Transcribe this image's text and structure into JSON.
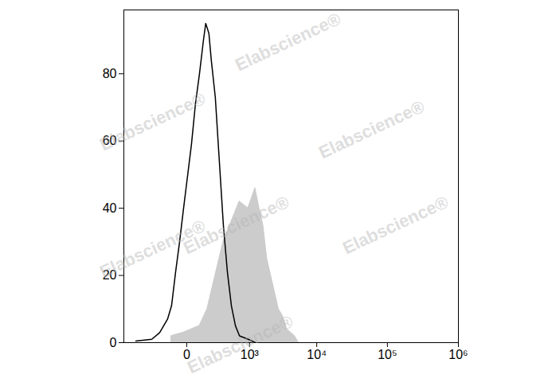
{
  "chart_data": {
    "type": "area",
    "log": "x",
    "xlim": [
      -1000,
      1000000
    ],
    "xticks": [
      0,
      {
        "value": 1000,
        "label": "10³"
      },
      {
        "value": 10000,
        "label": "10⁴"
      },
      {
        "value": 100000,
        "label": "10⁵"
      },
      {
        "value": 1000000,
        "label": "10⁶"
      }
    ],
    "ylim": [
      0,
      99
    ],
    "yticks": [
      0,
      20,
      40,
      60,
      80
    ],
    "grid": false,
    "annotations": [
      {
        "text": "Elabscience®"
      }
    ],
    "series": [
      {
        "type": "area",
        "color": "#cccccc",
        "x": [
          -95,
          -16,
          77,
          143,
          229,
          342,
          488,
          680,
          949,
          1235,
          1430,
          1640,
          1880,
          2150,
          2460,
          2800,
          3220,
          3710,
          4800,
          5500
        ],
        "values": [
          2,
          3,
          5,
          10,
          20,
          30,
          36,
          42,
          40,
          46,
          40,
          35,
          25,
          20,
          15,
          10,
          8,
          4,
          2,
          0
        ]
      },
      {
        "type": "line",
        "color": "#000000",
        "x": [
          -631,
          -315,
          -210,
          -129,
          -95,
          -65,
          -39,
          -16,
          25,
          49,
          77,
          108,
          128,
          158,
          183,
          229,
          282,
          342,
          411,
          488,
          578,
          680,
          949,
          1235
        ],
        "values": [
          0.5,
          1,
          3,
          7,
          11,
          21,
          30,
          40,
          59,
          71,
          80,
          90,
          95,
          92,
          84,
          73,
          54,
          35,
          21,
          11,
          5,
          2,
          1,
          0
        ]
      }
    ]
  }
}
